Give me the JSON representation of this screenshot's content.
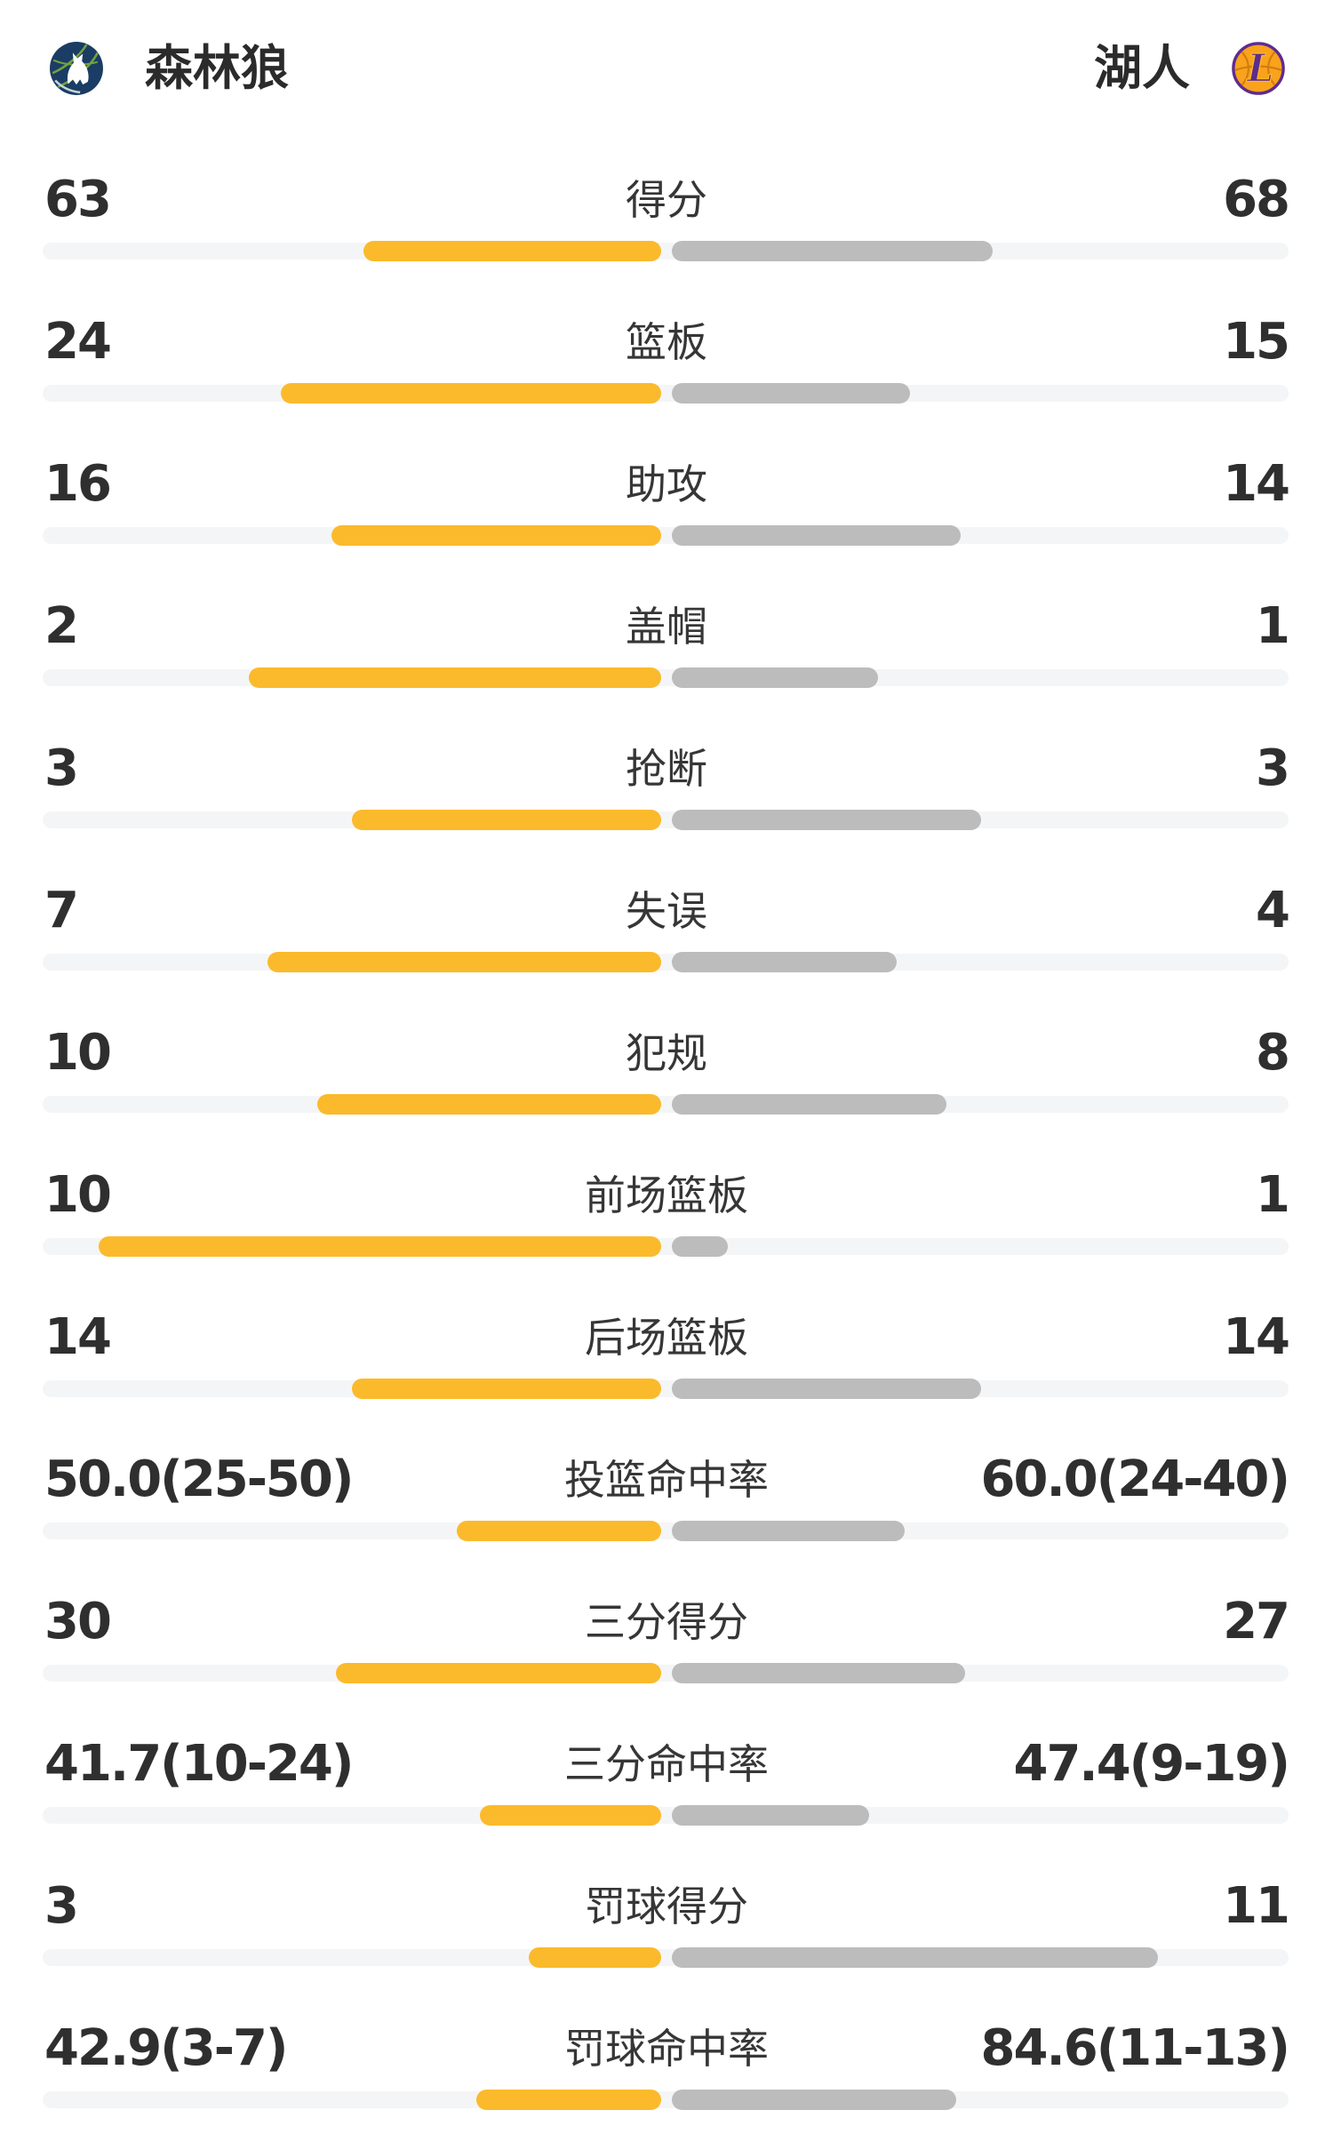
{
  "header": {
    "left_team": {
      "name": "森林狼",
      "logo": "timberwolves-logo"
    },
    "right_team": {
      "name": "湖人",
      "logo": "lakers-logo"
    }
  },
  "colors": {
    "background": "#FFFFFF",
    "left_bar": "#FBBA2C",
    "right_bar": "#BCBCBC",
    "bar_track": "#F4F5F6",
    "value_text": "#2F2F2F",
    "label_text": "#363636",
    "team_name_text": "#2B2B2B",
    "wolves_navy": "#1B3C64",
    "wolves_green": "#72A23E",
    "lakers_orange": "#F9A21B",
    "lakers_purple": "#5D2C8F",
    "lakers_gold": "#FDB927"
  },
  "chart_data": {
    "type": "bar",
    "orientation": "paired-horizontal-from-center",
    "legend_position": "none",
    "grid": false,
    "teams": [
      "森林狼",
      "湖人"
    ],
    "rows": [
      {
        "label": "得分",
        "left": "63",
        "right": "68",
        "left_w": 335,
        "right_w": 361
      },
      {
        "label": "篮板",
        "left": "24",
        "right": "15",
        "left_w": 428,
        "right_w": 268
      },
      {
        "label": "助攻",
        "left": "16",
        "right": "14",
        "left_w": 371,
        "right_w": 325
      },
      {
        "label": "盖帽",
        "left": "2",
        "right": "1",
        "left_w": 464,
        "right_w": 232
      },
      {
        "label": "抢断",
        "left": "3",
        "right": "3",
        "left_w": 348,
        "right_w": 348
      },
      {
        "label": "失误",
        "left": "7",
        "right": "4",
        "left_w": 443,
        "right_w": 253
      },
      {
        "label": "犯规",
        "left": "10",
        "right": "8",
        "left_w": 387,
        "right_w": 309
      },
      {
        "label": "前场篮板",
        "left": "10",
        "right": "1",
        "left_w": 633,
        "right_w": 63
      },
      {
        "label": "后场篮板",
        "left": "14",
        "right": "14",
        "left_w": 348,
        "right_w": 348
      },
      {
        "label": "投篮命中率",
        "left": "50.0(25-50)",
        "right": "60.0(24-40)",
        "left_w": 230,
        "right_w": 262
      },
      {
        "label": "三分得分",
        "left": "30",
        "right": "27",
        "left_w": 366,
        "right_w": 330
      },
      {
        "label": "三分命中率",
        "left": "41.7(10-24)",
        "right": "47.4(9-19)",
        "left_w": 204,
        "right_w": 222
      },
      {
        "label": "罚球得分",
        "left": "3",
        "right": "11",
        "left_w": 149,
        "right_w": 547
      },
      {
        "label": "罚球命中率",
        "left": "42.9(3-7)",
        "right": "84.6(11-13)",
        "left_w": 208,
        "right_w": 320
      }
    ]
  }
}
